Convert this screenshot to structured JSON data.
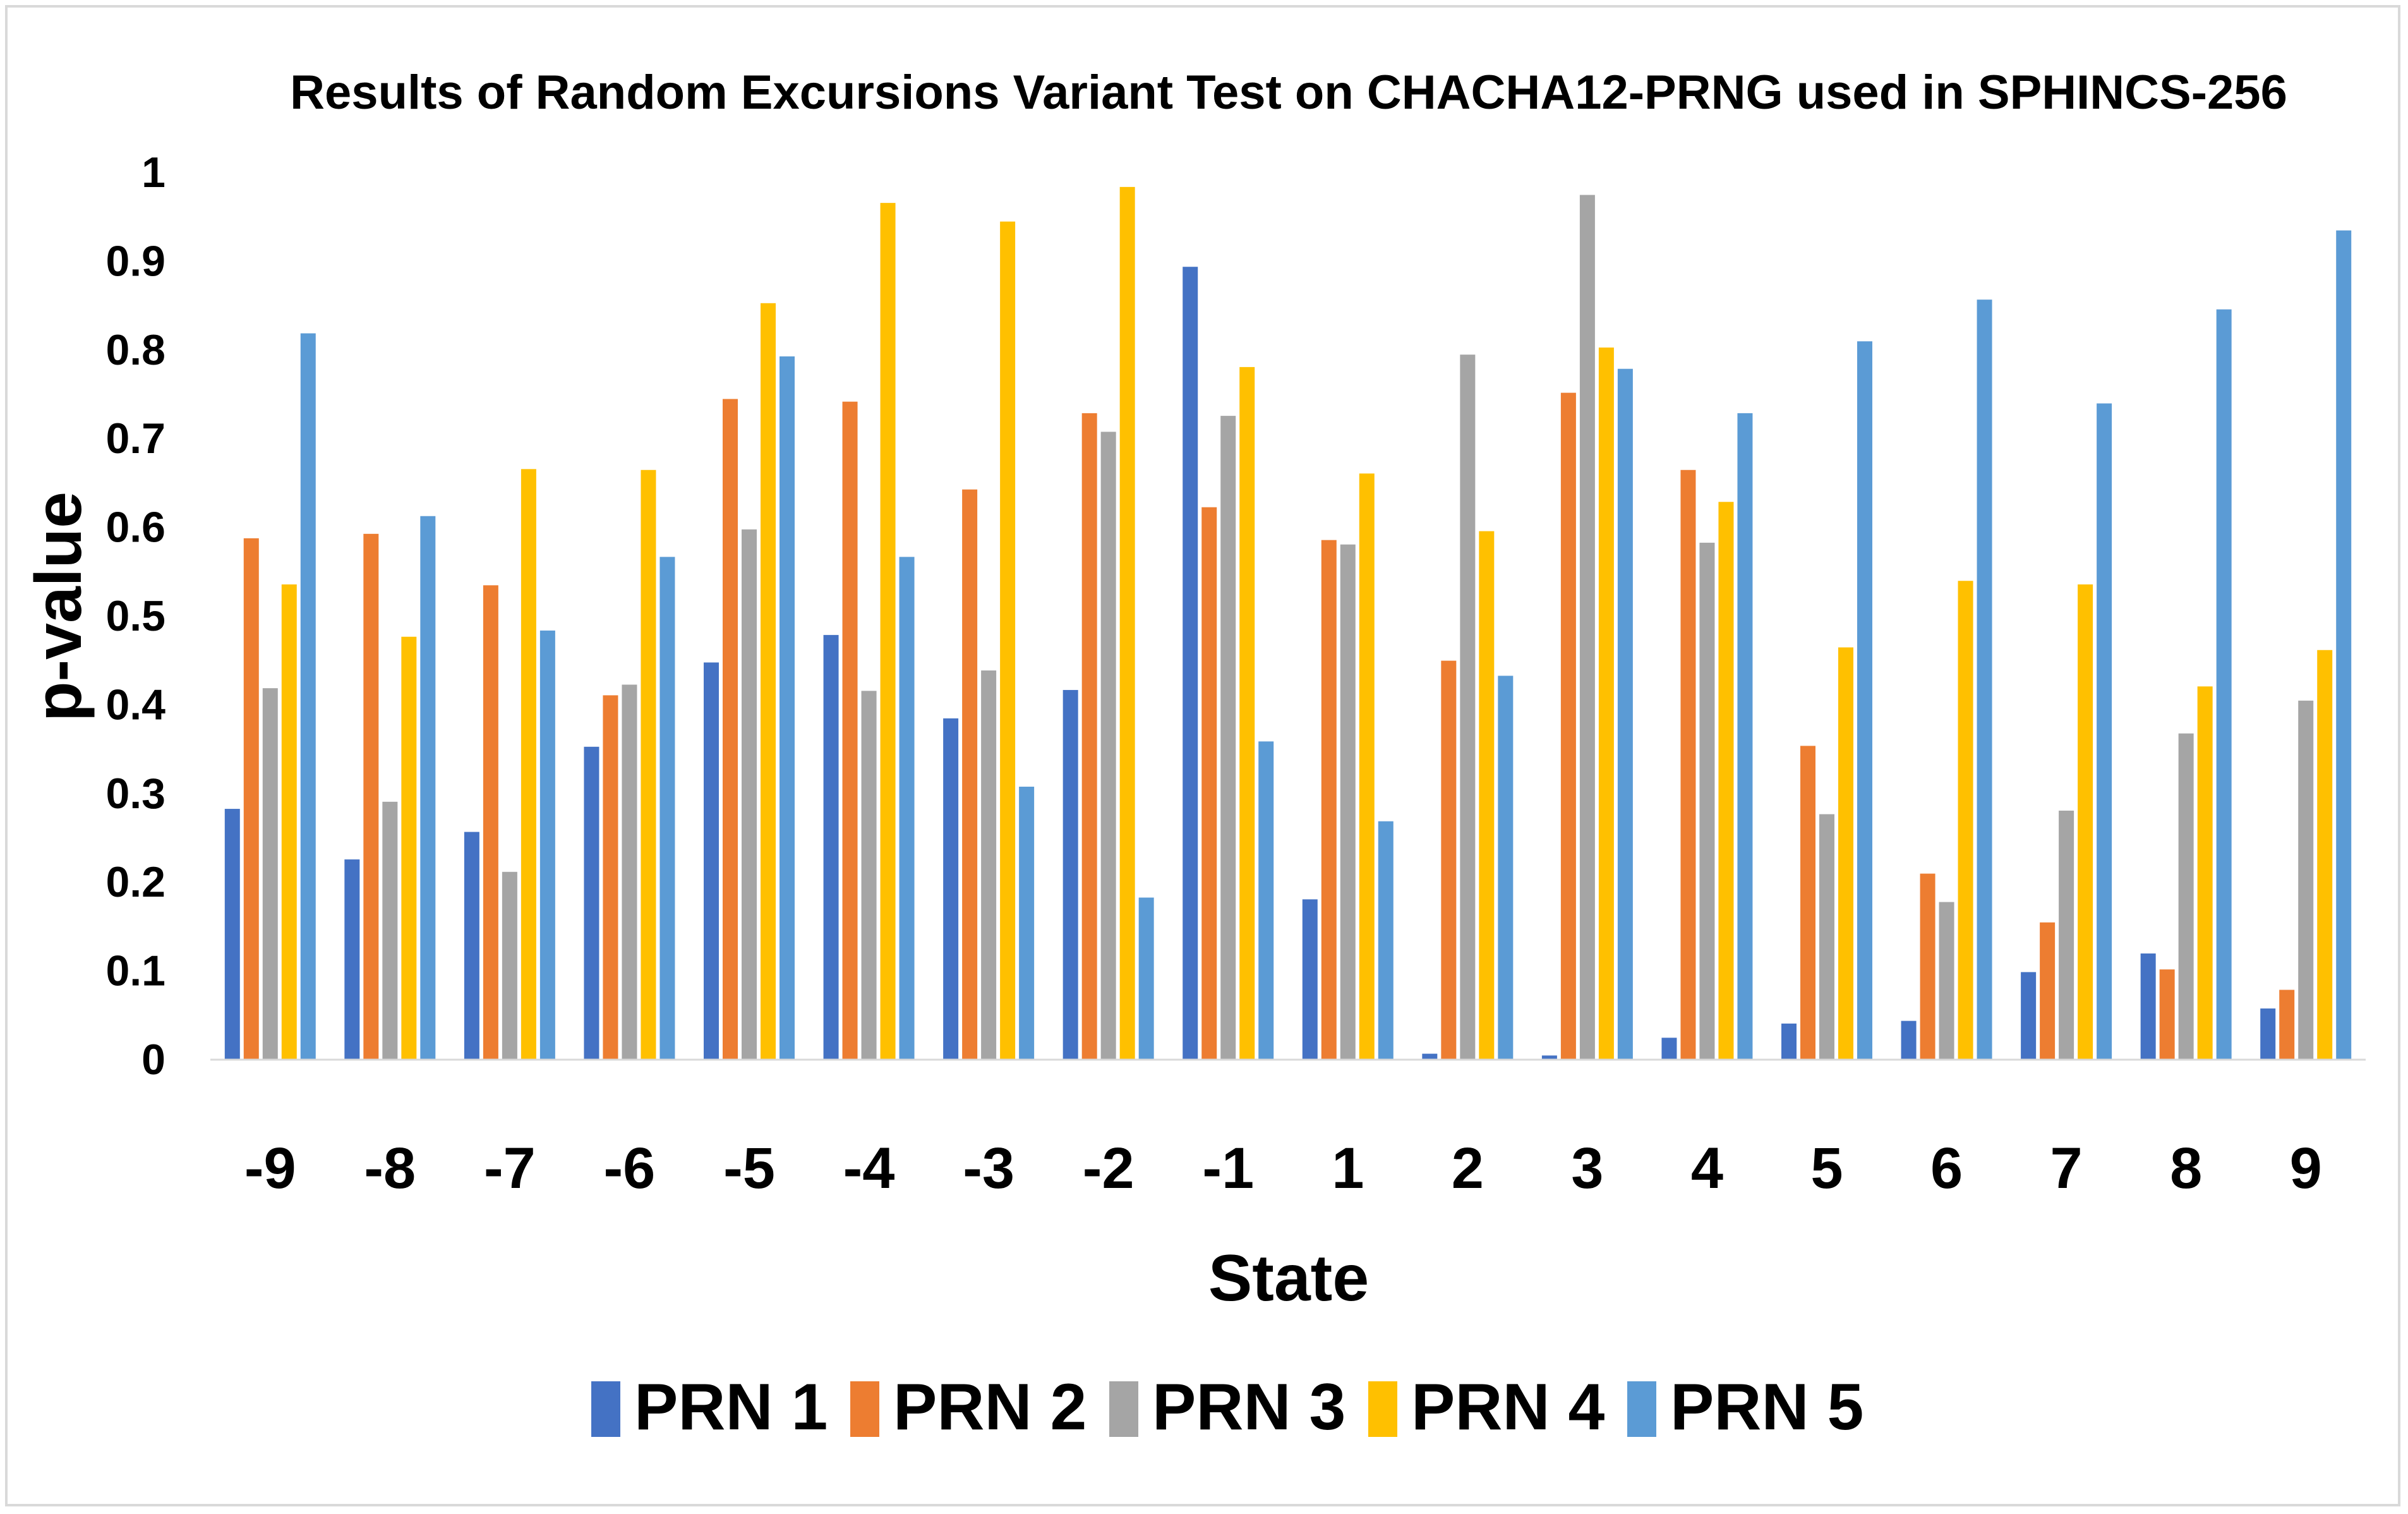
{
  "chart_data": {
    "type": "bar",
    "title": "Results of Random Excursions Variant Test on CHACHA12-PRNG used in SPHINCS-256",
    "xlabel": "State",
    "ylabel": "p-value",
    "ylim": [
      0,
      1
    ],
    "yticks": [
      "0",
      "0.1",
      "0.2",
      "0.3",
      "0.4",
      "0.5",
      "0.6",
      "0.7",
      "0.8",
      "0.9",
      "1"
    ],
    "grid": false,
    "legend_position": "bottom",
    "categories": [
      "-9",
      "-8",
      "-7",
      "-6",
      "-5",
      "-4",
      "-3",
      "-2",
      "-1",
      "1",
      "2",
      "3",
      "4",
      "5",
      "6",
      "7",
      "8",
      "9"
    ],
    "series": [
      {
        "name": "PRN 1",
        "color": "#4472C4",
        "values": [
          0.282,
          0.225,
          0.256,
          0.352,
          0.447,
          0.478,
          0.384,
          0.416,
          0.893,
          0.18,
          0.006,
          0.004,
          0.024,
          0.04,
          0.043,
          0.098,
          0.119,
          0.057
        ]
      },
      {
        "name": "PRN 2",
        "color": "#ED7D31",
        "values": [
          0.587,
          0.592,
          0.534,
          0.41,
          0.744,
          0.741,
          0.642,
          0.728,
          0.622,
          0.585,
          0.449,
          0.751,
          0.664,
          0.353,
          0.209,
          0.154,
          0.101,
          0.078
        ]
      },
      {
        "name": "PRN 3",
        "color": "#A5A5A5",
        "values": [
          0.418,
          0.29,
          0.211,
          0.422,
          0.597,
          0.415,
          0.438,
          0.707,
          0.725,
          0.58,
          0.794,
          0.974,
          0.582,
          0.276,
          0.177,
          0.28,
          0.367,
          0.404
        ]
      },
      {
        "name": "PRN 4",
        "color": "#FFC000",
        "values": [
          0.535,
          0.476,
          0.665,
          0.664,
          0.852,
          0.965,
          0.944,
          0.983,
          0.78,
          0.66,
          0.595,
          0.802,
          0.628,
          0.464,
          0.539,
          0.535,
          0.42,
          0.461
        ]
      },
      {
        "name": "PRN 5",
        "color": "#5B9BD5",
        "values": [
          0.818,
          0.612,
          0.483,
          0.566,
          0.792,
          0.566,
          0.307,
          0.182,
          0.358,
          0.268,
          0.432,
          0.778,
          0.728,
          0.809,
          0.856,
          0.739,
          0.845,
          0.934
        ]
      }
    ]
  }
}
